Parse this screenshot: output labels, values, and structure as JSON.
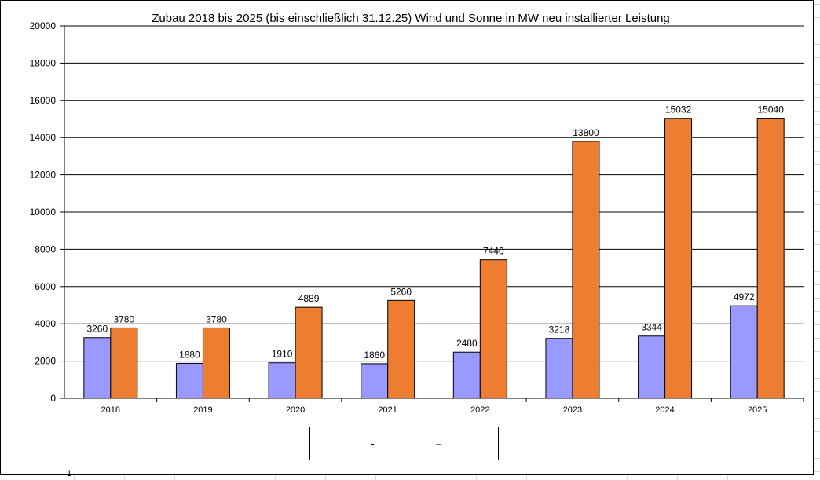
{
  "chart_data": {
    "type": "bar",
    "title": "Zubau 2018 bis 2025 (bis einschließlich 31.12.25) Wind und Sonne in MW neu installierter Leistung",
    "categories": [
      "2018",
      "2019",
      "2020",
      "2021",
      "2022",
      "2023",
      "2024",
      "2025"
    ],
    "series": [
      {
        "values": [
          3260,
          1880,
          1910,
          1860,
          2480,
          3218,
          3344,
          4972
        ],
        "color": "#9999ff"
      },
      {
        "values": [
          3780,
          3780,
          4889,
          5260,
          7440,
          13800,
          15032,
          15040
        ],
        "color": "#ed7d31"
      }
    ],
    "ylim": [
      0,
      20000
    ],
    "yticks": [
      0,
      2000,
      4000,
      6000,
      8000,
      10000,
      12000,
      14000,
      16000,
      18000,
      20000
    ],
    "grid": true,
    "legend": "bottom"
  },
  "cell_marker": "1"
}
